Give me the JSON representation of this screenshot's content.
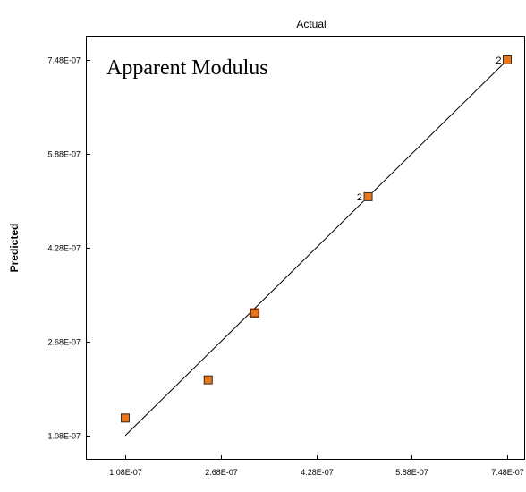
{
  "chart_data": {
    "type": "scatter",
    "title": "Apparent Modulus",
    "xlabel": "Actual",
    "ylabel": "Predicted",
    "xlim": [
      1.08e-07,
      7.48e-07
    ],
    "ylim": [
      1.08e-07,
      7.48e-07
    ],
    "x_ticks": [
      1.08e-07,
      2.68e-07,
      4.28e-07,
      5.88e-07,
      7.48e-07
    ],
    "x_tick_labels": [
      "1.08E-07",
      "2.68E-07",
      "4.28E-07",
      "5.88E-07",
      "7.48E-07"
    ],
    "y_ticks": [
      1.08e-07,
      2.68e-07,
      4.28e-07,
      5.88e-07,
      7.48e-07
    ],
    "y_tick_labels": [
      "1.08E-07",
      "2.68E-07",
      "4.28E-07",
      "5.88E-07",
      "7.48E-07"
    ],
    "points": [
      {
        "x": 1.08e-07,
        "y": 1.38e-07,
        "label": ""
      },
      {
        "x": 2.47e-07,
        "y": 2.03e-07,
        "label": ""
      },
      {
        "x": 3.25e-07,
        "y": 3.17e-07,
        "label": "",
        "outlined": true
      },
      {
        "x": 5.15e-07,
        "y": 5.15e-07,
        "label": "2"
      },
      {
        "x": 7.48e-07,
        "y": 7.48e-07,
        "label": "2"
      }
    ],
    "fit_line": {
      "x": [
        1.08e-07,
        7.48e-07
      ],
      "y": [
        1.08e-07,
        7.48e-07
      ]
    },
    "grid": false,
    "marker_color": "#e8761c"
  }
}
